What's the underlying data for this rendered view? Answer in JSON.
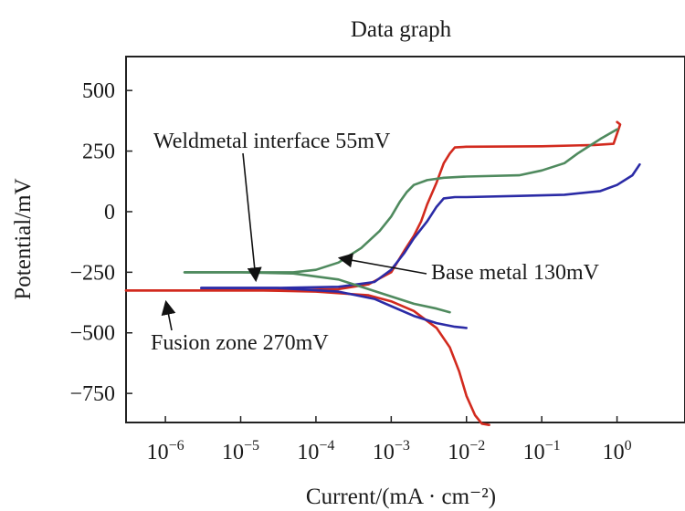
{
  "chart_data": {
    "type": "line",
    "title": "Data graph",
    "xlabel": "Current/(mA · cm⁻²)",
    "ylabel": "Potential/mV",
    "x_scale": "log",
    "xlim": [
      3e-07,
      8
    ],
    "ylim": [
      -870,
      640
    ],
    "x_ticks": [
      1e-06,
      1e-05,
      0.0001,
      0.001,
      0.01,
      0.1,
      1
    ],
    "x_tick_labels": [
      {
        "base": "10",
        "exp": "−6"
      },
      {
        "base": "10",
        "exp": "−5"
      },
      {
        "base": "10",
        "exp": "−4"
      },
      {
        "base": "10",
        "exp": "−3"
      },
      {
        "base": "10",
        "exp": "−2"
      },
      {
        "base": "10",
        "exp": "−1"
      },
      {
        "base": "10",
        "exp": "0"
      }
    ],
    "y_ticks": [
      500,
      250,
      0,
      -250,
      -500,
      -750
    ],
    "y_tick_labels": [
      "500",
      "250",
      "0",
      "−250",
      "−500",
      "−750"
    ],
    "grid": false,
    "series": [
      {
        "color": "#d22a1e",
        "x": [
          3e-07,
          3e-06,
          2e-05,
          0.0001,
          0.0005,
          0.001,
          0.002,
          0.004,
          0.006,
          0.008,
          0.01,
          0.013,
          0.016,
          0.02
        ],
        "y": [
          -325,
          -325,
          -325,
          -330,
          -345,
          -370,
          -410,
          -480,
          -560,
          -660,
          -760,
          -840,
          -875,
          -880
        ],
        "branch2_x": [
          3e-07,
          3e-06,
          3e-05,
          0.0002,
          0.0005,
          0.001,
          0.0015,
          0.002,
          0.0025,
          0.003,
          0.004,
          0.005,
          0.006,
          0.007,
          0.01,
          0.1,
          0.5,
          0.9,
          1.1,
          1.0
        ],
        "branch2_y": [
          -325,
          -325,
          -325,
          -320,
          -300,
          -250,
          -160,
          -100,
          -40,
          30,
          120,
          200,
          240,
          265,
          268,
          270,
          275,
          280,
          360,
          370
        ]
      },
      {
        "color": "#2b2ba6",
        "x": [
          3e-06,
          3e-05,
          0.0002,
          0.0006,
          0.001,
          0.002,
          0.004,
          0.007,
          0.01
        ],
        "y": [
          -315,
          -315,
          -330,
          -360,
          -390,
          -430,
          -460,
          -475,
          -480
        ],
        "branch2_x": [
          3e-06,
          3e-05,
          0.0002,
          0.0006,
          0.001,
          0.0015,
          0.002,
          0.003,
          0.004,
          0.005,
          0.007,
          0.01,
          0.05,
          0.2,
          0.6,
          1.0,
          1.6,
          2.0
        ],
        "branch2_y": [
          -315,
          -315,
          -310,
          -290,
          -240,
          -170,
          -110,
          -40,
          20,
          55,
          60,
          60,
          65,
          70,
          85,
          110,
          150,
          195
        ]
      },
      {
        "color": "#4f8a5e",
        "x": [
          1.8e-06,
          1e-05,
          5e-05,
          0.0002,
          0.0005,
          0.001,
          0.002,
          0.004,
          0.006
        ],
        "y": [
          -250,
          -250,
          -255,
          -280,
          -320,
          -350,
          -380,
          -400,
          -415
        ],
        "branch2_x": [
          1.8e-06,
          1e-05,
          5e-05,
          0.0001,
          0.0002,
          0.0004,
          0.0007,
          0.001,
          0.0013,
          0.0016,
          0.002,
          0.003,
          0.005,
          0.01,
          0.05,
          0.1,
          0.2,
          0.3,
          0.6,
          1.0
        ],
        "branch2_y": [
          -250,
          -250,
          -250,
          -240,
          -210,
          -150,
          -80,
          -20,
          40,
          80,
          110,
          130,
          140,
          145,
          150,
          170,
          200,
          240,
          300,
          340
        ]
      }
    ],
    "annotations": [
      {
        "text": "Weldmetal interface 55mV",
        "arrow_to": {
          "x": 1.7e-05,
          "y": -315
        }
      },
      {
        "text": "Base metal 130mV",
        "arrow_to": {
          "x": 0.00016,
          "y": -210
        }
      },
      {
        "text": "Fusion zone 270mV",
        "arrow_to": {
          "x": 1.8e-06,
          "y": -325
        }
      }
    ]
  }
}
